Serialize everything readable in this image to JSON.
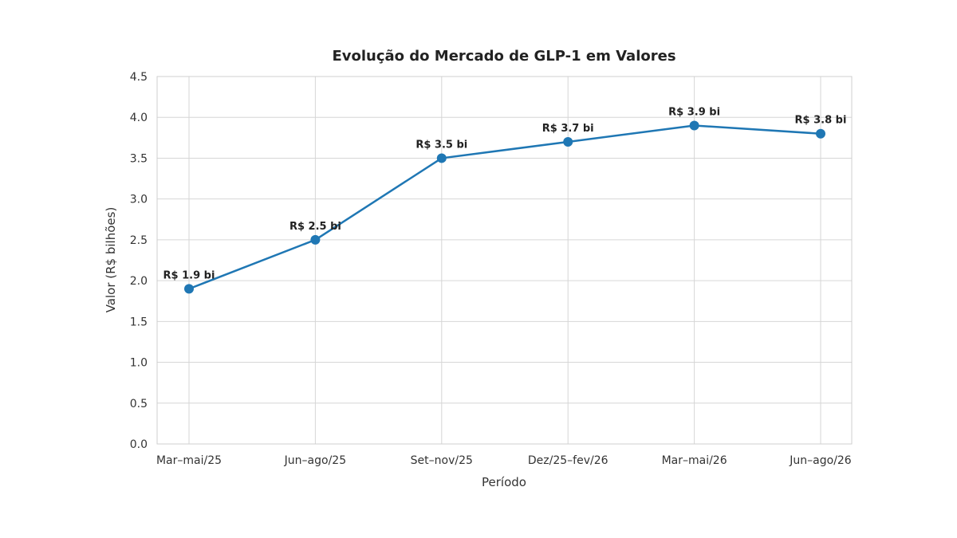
{
  "chart_data": {
    "type": "line",
    "title": "Evolução do Mercado de GLP-1 em Valores",
    "xlabel": "Período",
    "ylabel": "Valor (R$ bilhões)",
    "categories": [
      "Mar–mai/25",
      "Jun–ago/25",
      "Set–nov/25",
      "Dez/25–fev/26",
      "Mar–mai/26",
      "Jun–ago/26"
    ],
    "values": [
      1.9,
      2.5,
      3.5,
      3.7,
      3.9,
      3.8
    ],
    "data_labels": [
      "R$ 1.9 bi",
      "R$ 2.5 bi",
      "R$ 3.5 bi",
      "R$ 3.7 bi",
      "R$ 3.9 bi",
      "R$ 3.8 bi"
    ],
    "ylim": [
      0,
      4.5
    ],
    "yticks": [
      "0.0",
      "0.5",
      "1.0",
      "1.5",
      "2.0",
      "2.5",
      "3.0",
      "3.5",
      "4.0",
      "4.5"
    ],
    "grid": true,
    "line_color": "#1f77b4"
  }
}
